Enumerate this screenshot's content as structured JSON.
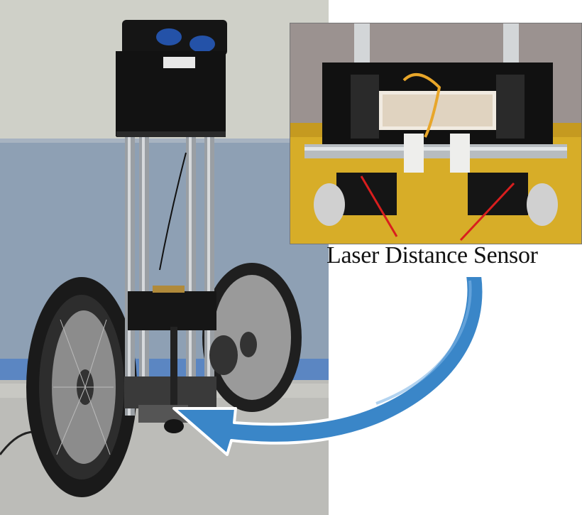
{
  "figure": {
    "caption": "Laser Distance Sensor"
  },
  "main_photo": {
    "subject": "two-wheeled-robot"
  },
  "inset_photo": {
    "subject": "laser-distance-sensor-closeup"
  },
  "colors": {
    "arrow_fill": "#3a86c8",
    "arrow_outline": "#ffffff",
    "pointer_lines": "#d91e1e",
    "wall_upper": "#cfd0c8",
    "wall_lower": "#8fa0b4",
    "floor": "#bdbdb8",
    "inset_body": "#d8b12a"
  }
}
